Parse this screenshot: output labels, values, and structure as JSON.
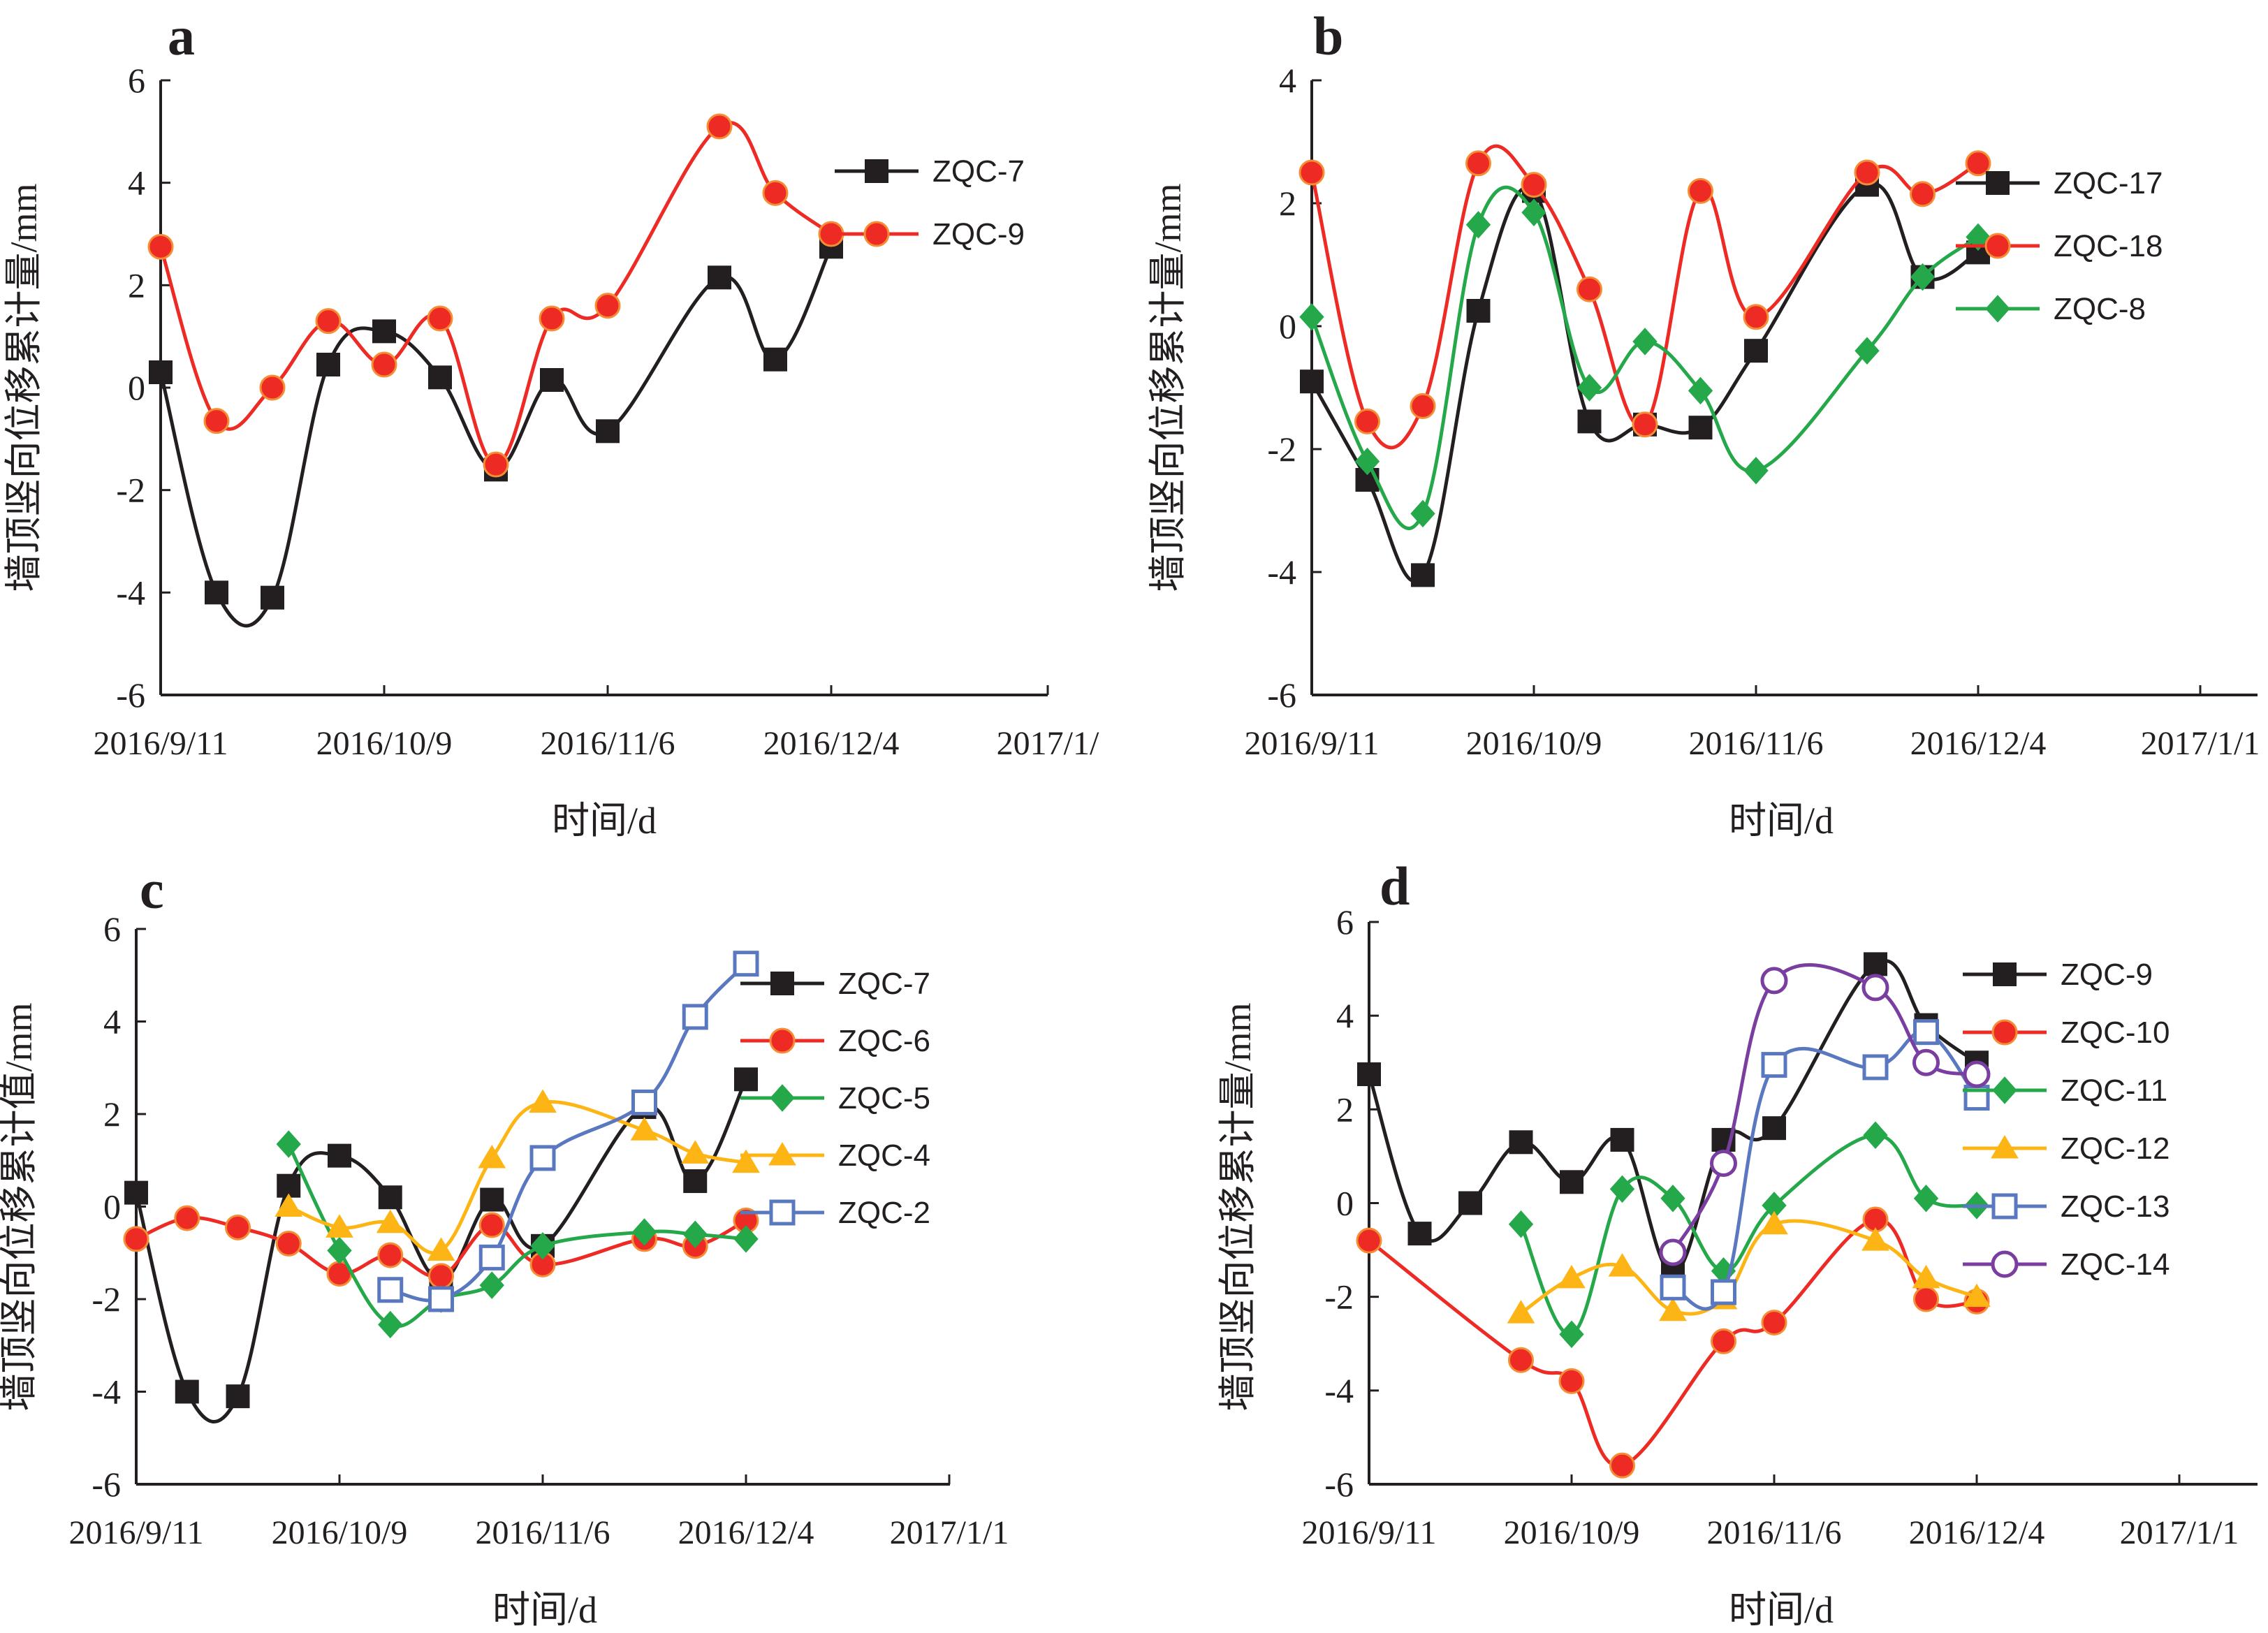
{
  "colors": {
    "axis": "#231f20",
    "black_series": "#231f20",
    "red_series": "#ee2a24",
    "green_series": "#25a84a",
    "orange_series": "#fdb515",
    "blue_series": "#5a78c0",
    "purple_series": "#7a3ea0"
  },
  "x_tick_labels_abd": [
    "2016/9/11",
    "2016/10/9",
    "2016/11/6",
    "2016/12/4",
    "2017/1/"
  ],
  "chart_data": [
    {
      "panel": "a",
      "type": "line",
      "xlabel": "时间/d",
      "ylabel": "墙顶竖向位移累计量/mm",
      "ylim": [
        -6,
        6
      ],
      "y_ticks": [
        "6",
        "4",
        "2",
        "0",
        "-2",
        "-4",
        "-6"
      ],
      "x_ticks": [
        "2016/9/11",
        "2016/10/9",
        "2016/11/6",
        "2016/12/4",
        "2017/1/"
      ],
      "xlim": [
        "2016-09-11",
        "2017-01-01"
      ],
      "legend": "right",
      "series": [
        {
          "name": "ZQC-7",
          "color": "#231f20",
          "marker": "square",
          "x": [
            "2016-09-11",
            "2016-09-18",
            "2016-09-25",
            "2016-10-02",
            "2016-10-09",
            "2016-10-16",
            "2016-10-23",
            "2016-10-30",
            "2016-11-06",
            "2016-11-20",
            "2016-11-27",
            "2016-12-04"
          ],
          "y": [
            0.3,
            -4.0,
            -4.1,
            0.45,
            1.1,
            0.2,
            -1.6,
            0.15,
            -0.85,
            2.15,
            0.55,
            2.75
          ]
        },
        {
          "name": "ZQC-9",
          "color": "#ee2a24",
          "marker": "circle",
          "x": [
            "2016-09-11",
            "2016-09-18",
            "2016-09-25",
            "2016-10-02",
            "2016-10-09",
            "2016-10-16",
            "2016-10-23",
            "2016-10-30",
            "2016-11-06",
            "2016-11-20",
            "2016-11-27",
            "2016-12-04"
          ],
          "y": [
            2.75,
            -0.65,
            0.0,
            1.3,
            0.45,
            1.35,
            -1.5,
            1.35,
            1.6,
            5.1,
            3.8,
            3.0
          ]
        }
      ]
    },
    {
      "panel": "b",
      "type": "line",
      "xlabel": "时间/d",
      "ylabel": "墙顶竖向位移累计量/mm",
      "ylim": [
        -6,
        4
      ],
      "y_ticks": [
        "4",
        "2",
        "0",
        "-2",
        "-4",
        "-6"
      ],
      "x_ticks": [
        "2016/9/11",
        "2016/10/9",
        "2016/11/6",
        "2016/12/4",
        "2017/1/1"
      ],
      "xlim": [
        "2016-09-11",
        "2017-01-01"
      ],
      "legend": "right",
      "series": [
        {
          "name": "ZQC-17",
          "color": "#231f20",
          "marker": "square",
          "x": [
            "2016-09-11",
            "2016-09-18",
            "2016-09-25",
            "2016-10-02",
            "2016-10-09",
            "2016-10-16",
            "2016-10-23",
            "2016-10-30",
            "2016-11-06",
            "2016-11-20",
            "2016-11-27",
            "2016-12-04"
          ],
          "y": [
            -0.9,
            -2.5,
            -4.05,
            0.25,
            2.2,
            -1.55,
            -1.6,
            -1.65,
            -0.4,
            2.3,
            0.8,
            1.2
          ]
        },
        {
          "name": "ZQC-18",
          "color": "#ee2a24",
          "marker": "circle",
          "x": [
            "2016-09-11",
            "2016-09-18",
            "2016-09-25",
            "2016-10-02",
            "2016-10-09",
            "2016-10-16",
            "2016-10-23",
            "2016-10-30",
            "2016-11-06",
            "2016-11-20",
            "2016-11-27",
            "2016-12-04"
          ],
          "y": [
            2.5,
            -1.55,
            -1.3,
            2.65,
            2.3,
            0.6,
            -1.6,
            2.2,
            0.15,
            2.5,
            2.15,
            2.65
          ]
        },
        {
          "name": "ZQC-8",
          "color": "#25a84a",
          "marker": "diamond",
          "x": [
            "2016-09-11",
            "2016-09-18",
            "2016-09-25",
            "2016-10-02",
            "2016-10-09",
            "2016-10-16",
            "2016-10-23",
            "2016-10-30",
            "2016-11-06",
            "2016-11-20",
            "2016-11-27",
            "2016-12-04"
          ],
          "y": [
            0.15,
            -2.2,
            -3.05,
            1.65,
            1.85,
            -1.0,
            -0.25,
            -1.05,
            -2.35,
            -0.4,
            0.8,
            1.45
          ]
        }
      ]
    },
    {
      "panel": "c",
      "type": "line",
      "xlabel": "时间/d",
      "ylabel": "墙顶竖向位移累计值/mm",
      "ylim": [
        -6,
        6
      ],
      "y_ticks": [
        "6",
        "4",
        "2",
        "0",
        "-2",
        "-4",
        "-6"
      ],
      "x_ticks": [
        "2016/9/11",
        "2016/10/9",
        "2016/11/6",
        "2016/12/4",
        "2017/1/1"
      ],
      "xlim": [
        "2016-09-11",
        "2017-01-01"
      ],
      "legend": "right",
      "series": [
        {
          "name": "ZQC-7",
          "color": "#231f20",
          "marker": "square",
          "x": [
            "2016-09-11",
            "2016-09-18",
            "2016-09-25",
            "2016-10-02",
            "2016-10-09",
            "2016-10-16",
            "2016-10-23",
            "2016-10-30",
            "2016-11-06",
            "2016-11-20",
            "2016-11-27",
            "2016-12-04"
          ],
          "y": [
            0.3,
            -4.0,
            -4.1,
            0.45,
            1.1,
            0.2,
            -1.6,
            0.15,
            -0.85,
            2.15,
            0.55,
            2.75
          ]
        },
        {
          "name": "ZQC-6",
          "color": "#ee2a24",
          "marker": "circle",
          "x": [
            "2016-09-11",
            "2016-09-18",
            "2016-09-25",
            "2016-10-02",
            "2016-10-09",
            "2016-10-16",
            "2016-10-23",
            "2016-10-30",
            "2016-11-06",
            "2016-11-20",
            "2016-11-27",
            "2016-12-04"
          ],
          "y": [
            -0.7,
            -0.25,
            -0.45,
            -0.8,
            -1.45,
            -1.05,
            -1.5,
            -0.4,
            -1.25,
            -0.7,
            -0.85,
            -0.3
          ]
        },
        {
          "name": "ZQC-5",
          "color": "#25a84a",
          "marker": "diamond",
          "x": [
            "2016-10-02",
            "2016-10-09",
            "2016-10-16",
            "2016-10-23",
            "2016-10-30",
            "2016-11-06",
            "2016-11-20",
            "2016-11-27",
            "2016-12-04"
          ],
          "y": [
            1.35,
            -0.95,
            -2.55,
            -2.0,
            -1.7,
            -0.85,
            -0.55,
            -0.6,
            -0.7
          ]
        },
        {
          "name": "ZQC-4",
          "color": "#fdb515",
          "marker": "triangle",
          "x": [
            "2016-10-02",
            "2016-10-09",
            "2016-10-16",
            "2016-10-23",
            "2016-10-30",
            "2016-11-06",
            "2016-11-20",
            "2016-11-27",
            "2016-12-04"
          ],
          "y": [
            0.0,
            -0.45,
            -0.35,
            -0.95,
            1.05,
            2.25,
            1.65,
            1.15,
            0.95
          ]
        },
        {
          "name": "ZQC-2",
          "color": "#5a78c0",
          "marker": "open-square",
          "x": [
            "2016-10-16",
            "2016-10-23",
            "2016-10-30",
            "2016-11-06",
            "2016-11-20",
            "2016-11-27",
            "2016-12-04"
          ],
          "y": [
            -1.8,
            -2.0,
            -1.1,
            1.05,
            2.25,
            4.1,
            5.25
          ]
        }
      ]
    },
    {
      "panel": "d",
      "type": "line",
      "xlabel": "时间/d",
      "ylabel": "墙顶竖向位移累计量/mm",
      "ylim": [
        -6,
        6
      ],
      "y_ticks": [
        "6",
        "4",
        "2",
        "0",
        "-2",
        "-4",
        "-6"
      ],
      "x_ticks": [
        "2016/9/11",
        "2016/10/9",
        "2016/11/6",
        "2016/12/4",
        "2017/1/1"
      ],
      "xlim": [
        "2016-09-11",
        "2017-01-01"
      ],
      "legend": "right",
      "series": [
        {
          "name": "ZQC-9",
          "color": "#231f20",
          "marker": "square",
          "x": [
            "2016-09-11",
            "2016-09-18",
            "2016-09-25",
            "2016-10-02",
            "2016-10-09",
            "2016-10-16",
            "2016-10-23",
            "2016-10-30",
            "2016-11-06",
            "2016-11-20",
            "2016-11-27",
            "2016-12-04"
          ],
          "y": [
            2.75,
            -0.65,
            0.0,
            1.3,
            0.45,
            1.35,
            -1.5,
            1.35,
            1.6,
            5.1,
            3.8,
            3.0
          ]
        },
        {
          "name": "ZQC-10",
          "color": "#ee2a24",
          "marker": "circle",
          "x": [
            "2016-09-11",
            "2016-10-02",
            "2016-10-09",
            "2016-10-16",
            "2016-10-30",
            "2016-11-06",
            "2016-11-20",
            "2016-11-27",
            "2016-12-04"
          ],
          "y": [
            -0.8,
            -3.35,
            -3.8,
            -5.6,
            -2.95,
            -2.55,
            -0.35,
            -2.05,
            -2.1
          ]
        },
        {
          "name": "ZQC-11",
          "color": "#25a84a",
          "marker": "diamond",
          "x": [
            "2016-10-02",
            "2016-10-09",
            "2016-10-16",
            "2016-10-23",
            "2016-10-30",
            "2016-11-06",
            "2016-11-20",
            "2016-11-27",
            "2016-12-04"
          ],
          "y": [
            -0.45,
            -2.8,
            0.3,
            0.1,
            -1.45,
            -0.05,
            1.45,
            0.1,
            -0.05
          ]
        },
        {
          "name": "ZQC-12",
          "color": "#fdb515",
          "marker": "triangle",
          "x": [
            "2016-10-02",
            "2016-10-09",
            "2016-10-16",
            "2016-10-23",
            "2016-10-30",
            "2016-11-06",
            "2016-11-20",
            "2016-11-27",
            "2016-12-04"
          ],
          "y": [
            -2.35,
            -1.6,
            -1.35,
            -2.3,
            -2.05,
            -0.45,
            -0.8,
            -1.6,
            -2.0
          ]
        },
        {
          "name": "ZQC-13",
          "color": "#5a78c0",
          "marker": "open-square",
          "x": [
            "2016-10-23",
            "2016-10-30",
            "2016-11-06",
            "2016-11-20",
            "2016-11-27",
            "2016-12-04"
          ],
          "y": [
            -1.8,
            -1.9,
            2.95,
            2.9,
            3.65,
            2.25
          ]
        },
        {
          "name": "ZQC-14",
          "color": "#7a3ea0",
          "marker": "open-circle",
          "x": [
            "2016-10-23",
            "2016-10-30",
            "2016-11-06",
            "2016-11-20",
            "2016-11-27",
            "2016-12-04"
          ],
          "y": [
            -1.05,
            0.85,
            4.75,
            4.6,
            3.0,
            2.75
          ]
        }
      ]
    }
  ]
}
